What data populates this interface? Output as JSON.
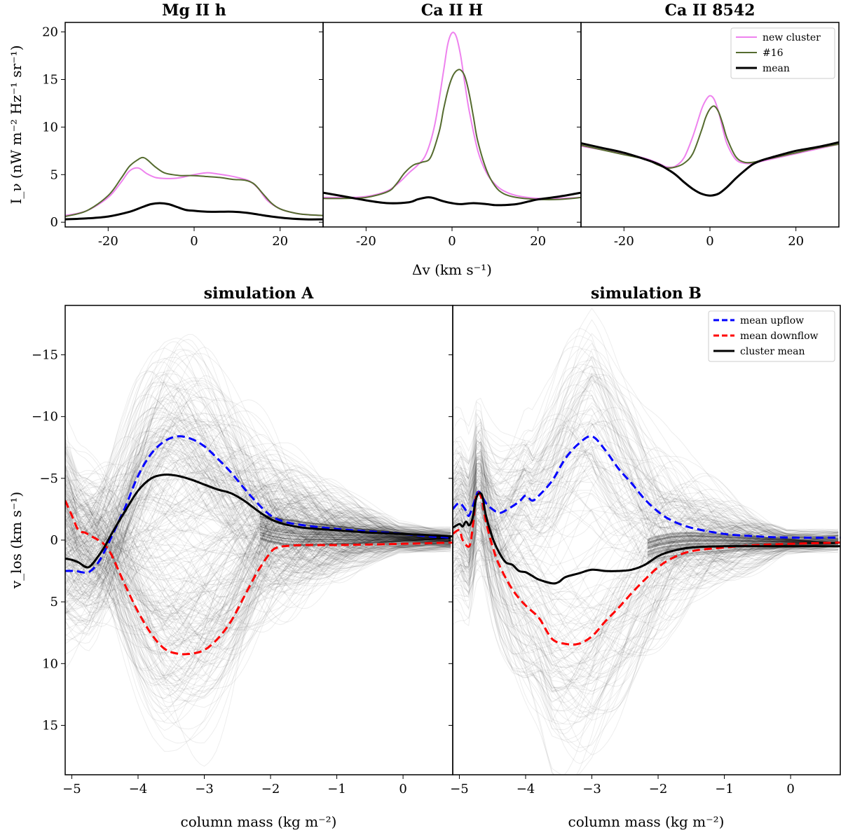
{
  "top_panels": [
    {
      "title": "Mg II h",
      "chart_data": {
        "type": "line",
        "title": "Mg II h",
        "xlim": [
          -30,
          30
        ],
        "ylim": [
          -0.5,
          21
        ],
        "xticks": [
          -20,
          0,
          20
        ],
        "yticks": [
          0,
          5,
          10,
          15,
          20
        ],
        "series": [
          {
            "name": "new cluster",
            "color": "#ee82ee",
            "x": [
              -30,
              -25,
              -20,
              -17,
              -15,
              -13,
              -11,
              -9,
              -7,
              -5,
              -3,
              0,
              3,
              5,
              8,
              11,
              13,
              15,
              17,
              20,
              23,
              26,
              30
            ],
            "y": [
              0.7,
              1.2,
              2.6,
              4.2,
              5.4,
              5.7,
              5.1,
              4.7,
              4.6,
              4.6,
              4.7,
              5.0,
              5.2,
              5.1,
              4.9,
              4.6,
              4.3,
              3.5,
              2.3,
              1.4,
              1.0,
              0.8,
              0.7
            ]
          },
          {
            "name": "#16",
            "color": "#556b2f",
            "x": [
              -30,
              -25,
              -20,
              -17,
              -15,
              -13,
              -12,
              -11,
              -9,
              -7,
              -5,
              -3,
              0,
              3,
              6,
              9,
              12,
              14,
              16,
              18,
              20,
              23,
              26,
              30
            ],
            "y": [
              0.6,
              1.2,
              2.8,
              4.6,
              5.9,
              6.6,
              6.8,
              6.6,
              5.8,
              5.2,
              5.0,
              4.9,
              4.9,
              4.8,
              4.7,
              4.5,
              4.4,
              4.0,
              3.0,
              2.0,
              1.4,
              1.0,
              0.8,
              0.7
            ]
          },
          {
            "name": "mean",
            "color": "#000000",
            "x": [
              -30,
              -25,
              -20,
              -15,
              -12,
              -10,
              -8,
              -6,
              -4,
              -2,
              0,
              3,
              6,
              9,
              12,
              15,
              18,
              22,
              26,
              30
            ],
            "y": [
              0.3,
              0.4,
              0.6,
              1.1,
              1.6,
              1.9,
              2.0,
              1.9,
              1.6,
              1.3,
              1.2,
              1.1,
              1.1,
              1.1,
              1.0,
              0.8,
              0.6,
              0.4,
              0.3,
              0.3
            ]
          }
        ]
      }
    },
    {
      "title": "Ca II H",
      "chart_data": {
        "type": "line",
        "title": "Ca II H",
        "xlim": [
          -30,
          30
        ],
        "ylim": [
          -0.5,
          21
        ],
        "xticks": [
          -20,
          0,
          20
        ],
        "yticks": [
          0,
          5,
          10,
          15,
          20
        ],
        "series": [
          {
            "name": "new cluster",
            "color": "#ee82ee",
            "x": [
              -30,
              -25,
              -20,
              -15,
              -12,
              -10,
              -8,
              -6,
              -4,
              -2,
              -1,
              0,
              1,
              2,
              3,
              4,
              6,
              8,
              10,
              12,
              15,
              20,
              25,
              30
            ],
            "y": [
              2.6,
              2.6,
              2.7,
              3.3,
              4.3,
              5.2,
              6.0,
              7.2,
              10.3,
              15.8,
              18.7,
              19.9,
              19.5,
              17.5,
              14.5,
              11.7,
              7.5,
              5.2,
              4.0,
              3.3,
              2.8,
              2.5,
              2.5,
              2.6
            ]
          },
          {
            "name": "#16",
            "color": "#556b2f",
            "x": [
              -30,
              -25,
              -20,
              -15,
              -13,
              -11,
              -9,
              -7,
              -5,
              -3,
              -2,
              -1,
              0,
              1,
              2,
              3,
              4,
              5,
              6,
              8,
              10,
              12,
              15,
              20,
              25,
              30
            ],
            "y": [
              2.5,
              2.5,
              2.6,
              3.2,
              4.0,
              5.2,
              6.0,
              6.3,
              6.8,
              9.5,
              11.8,
              13.8,
              15.2,
              15.9,
              16.0,
              15.3,
              13.5,
              11.0,
              8.5,
              5.5,
              3.8,
              3.0,
              2.6,
              2.4,
              2.4,
              2.6
            ]
          },
          {
            "name": "mean",
            "color": "#000000",
            "x": [
              -30,
              -25,
              -20,
              -15,
              -10,
              -8,
              -6,
              -5,
              -4,
              -2,
              0,
              2,
              5,
              8,
              10,
              12,
              15,
              18,
              20,
              25,
              30
            ],
            "y": [
              3.1,
              2.7,
              2.3,
              2.0,
              2.1,
              2.4,
              2.6,
              2.6,
              2.5,
              2.2,
              2.0,
              1.9,
              2.0,
              1.9,
              1.8,
              1.8,
              1.9,
              2.2,
              2.4,
              2.7,
              3.1
            ]
          }
        ]
      }
    },
    {
      "title": "Ca II 8542",
      "chart_data": {
        "type": "line",
        "title": "Ca II 8542",
        "xlim": [
          -30,
          30
        ],
        "ylim": [
          -0.5,
          21
        ],
        "xticks": [
          -20,
          0,
          20
        ],
        "yticks": [
          0,
          5,
          10,
          15,
          20
        ],
        "legend": [
          "new cluster",
          "#16",
          "mean"
        ],
        "series": [
          {
            "name": "new cluster",
            "color": "#ee82ee",
            "x": [
              -30,
              -25,
              -20,
              -15,
              -12,
              -10,
              -8,
              -6,
              -4,
              -2,
              -1,
              0,
              1,
              2,
              3,
              4,
              6,
              8,
              10,
              12,
              15,
              20,
              25,
              30
            ],
            "y": [
              8.0,
              7.6,
              7.2,
              6.7,
              6.2,
              5.8,
              5.9,
              6.8,
              9.0,
              11.8,
              12.8,
              13.3,
              12.9,
              11.6,
              9.8,
              8.2,
              6.6,
              6.2,
              6.2,
              6.4,
              6.7,
              7.2,
              7.7,
              8.2
            ]
          },
          {
            "name": "#16",
            "color": "#556b2f",
            "x": [
              -30,
              -25,
              -20,
              -15,
              -12,
              -10,
              -8,
              -6,
              -4,
              -2,
              -1,
              0,
              1,
              2,
              3,
              4,
              6,
              8,
              10,
              12,
              15,
              20,
              25,
              30
            ],
            "y": [
              8.1,
              7.6,
              7.1,
              6.6,
              6.0,
              5.7,
              5.8,
              6.2,
              7.2,
              9.6,
              11.0,
              11.9,
              12.2,
              11.6,
              10.3,
              8.8,
              6.9,
              6.3,
              6.3,
              6.5,
              6.8,
              7.3,
              7.8,
              8.2
            ]
          },
          {
            "name": "mean",
            "color": "#000000",
            "x": [
              -30,
              -25,
              -20,
              -15,
              -12,
              -10,
              -8,
              -6,
              -4,
              -2,
              0,
              2,
              4,
              6,
              8,
              10,
              12,
              15,
              20,
              25,
              30
            ],
            "y": [
              8.3,
              7.8,
              7.3,
              6.6,
              6.1,
              5.6,
              5.0,
              4.2,
              3.5,
              3.0,
              2.8,
              3.0,
              3.7,
              4.6,
              5.4,
              6.1,
              6.5,
              6.9,
              7.5,
              7.9,
              8.4
            ]
          }
        ]
      }
    }
  ],
  "top_ylabel": "I_ν (nW m⁻² Hz⁻¹ sr⁻¹)",
  "top_xlabel": "Δv (km s⁻¹)",
  "bottom_panels": [
    {
      "title": "simulation A",
      "chart_data": {
        "type": "line",
        "title": "simulation A",
        "xlim": [
          -5.1,
          0.75
        ],
        "ylim": [
          -19,
          19
        ],
        "y_inverted": true,
        "xticks": [
          -5,
          -4,
          -3,
          -2,
          -1,
          0
        ],
        "yticks": [
          -15,
          -10,
          -5,
          0,
          5,
          10,
          15
        ],
        "xlabel": "column mass (kg m⁻²)",
        "series": [
          {
            "name": "mean upflow",
            "color": "#0000ff",
            "dash": true,
            "x": [
              -5.1,
              -4.95,
              -4.75,
              -4.6,
              -4.45,
              -4.2,
              -4.0,
              -3.8,
              -3.6,
              -3.4,
              -3.2,
              -3.0,
              -2.8,
              -2.6,
              -2.4,
              -2.2,
              -2.0,
              -1.8,
              -1.5,
              -1.0,
              -0.5,
              0,
              0.4,
              0.75
            ],
            "y": [
              2.5,
              2.5,
              2.6,
              1.8,
              0.3,
              -2.6,
              -5.2,
              -7.0,
              -8.0,
              -8.4,
              -8.2,
              -7.6,
              -6.6,
              -5.5,
              -4.2,
              -3.0,
              -2.0,
              -1.5,
              -1.2,
              -0.9,
              -0.7,
              -0.5,
              -0.3,
              -0.2
            ]
          },
          {
            "name": "mean downflow",
            "color": "#ff0000",
            "dash": true,
            "x": [
              -5.1,
              -5.0,
              -4.9,
              -4.8,
              -4.7,
              -4.6,
              -4.5,
              -4.4,
              -4.2,
              -4.0,
              -3.8,
              -3.6,
              -3.4,
              -3.2,
              -3.0,
              -2.8,
              -2.6,
              -2.4,
              -2.2,
              -2.0,
              -1.9,
              -1.8,
              -1.5,
              -1.0,
              0,
              0.75
            ],
            "y": [
              -3.2,
              -2.0,
              -0.8,
              -0.6,
              -0.3,
              0.0,
              0.4,
              1.2,
              3.6,
              5.8,
              7.6,
              8.8,
              9.2,
              9.2,
              8.9,
              8.0,
              6.6,
              4.6,
              2.6,
              1.0,
              0.6,
              0.5,
              0.4,
              0.4,
              0.3,
              0.2
            ]
          },
          {
            "name": "cluster mean",
            "color": "#000000",
            "dash": false,
            "x": [
              -5.1,
              -5.0,
              -4.9,
              -4.75,
              -4.6,
              -4.5,
              -4.4,
              -4.2,
              -4.0,
              -3.8,
              -3.6,
              -3.4,
              -3.2,
              -3.0,
              -2.8,
              -2.6,
              -2.4,
              -2.2,
              -2.0,
              -1.8,
              -1.5,
              -1.0,
              -0.5,
              0,
              0.4,
              0.75
            ],
            "y": [
              1.5,
              1.6,
              1.8,
              2.2,
              1.3,
              0.5,
              -0.5,
              -2.3,
              -4.0,
              -5.0,
              -5.3,
              -5.2,
              -4.9,
              -4.5,
              -4.1,
              -3.8,
              -3.2,
              -2.4,
              -1.7,
              -1.3,
              -1.0,
              -0.8,
              -0.6,
              -0.5,
              -0.4,
              -0.3
            ]
          }
        ]
      }
    },
    {
      "title": "simulation B",
      "chart_data": {
        "type": "line",
        "title": "simulation B",
        "xlim": [
          -5.1,
          0.75
        ],
        "ylim": [
          -19,
          19
        ],
        "y_inverted": true,
        "xticks": [
          -5,
          -4,
          -3,
          -2,
          -1,
          0
        ],
        "xlabel": "column mass (kg m⁻²)",
        "legend": [
          "mean upflow",
          "mean downflow",
          "cluster mean"
        ],
        "series": [
          {
            "name": "mean upflow",
            "color": "#0000ff",
            "dash": true,
            "x": [
              -5.1,
              -5.0,
              -4.9,
              -4.85,
              -4.75,
              -4.7,
              -4.6,
              -4.5,
              -4.4,
              -4.3,
              -4.1,
              -4.0,
              -3.9,
              -3.8,
              -3.6,
              -3.4,
              -3.2,
              -3.0,
              -2.8,
              -2.6,
              -2.4,
              -2.2,
              -2.0,
              -1.8,
              -1.5,
              -1.0,
              -0.5,
              0,
              0.75
            ],
            "y": [
              -2.5,
              -3.0,
              -2.4,
              -2.0,
              -3.5,
              -3.9,
              -3.0,
              -2.5,
              -2.2,
              -2.4,
              -3.1,
              -3.6,
              -3.2,
              -3.6,
              -4.8,
              -6.6,
              -7.8,
              -8.4,
              -7.3,
              -5.8,
              -4.6,
              -3.3,
              -2.3,
              -1.6,
              -1.0,
              -0.5,
              -0.3,
              -0.2,
              -0.2
            ]
          },
          {
            "name": "mean downflow",
            "color": "#ff0000",
            "dash": true,
            "x": [
              -5.1,
              -5.0,
              -4.95,
              -4.85,
              -4.8,
              -4.75,
              -4.7,
              -4.65,
              -4.6,
              -4.5,
              -4.4,
              -4.2,
              -4.0,
              -3.8,
              -3.6,
              -3.4,
              -3.2,
              -3.0,
              -2.8,
              -2.6,
              -2.4,
              -2.2,
              -2.0,
              -1.8,
              -1.5,
              -1.0,
              -0.5,
              0,
              0.75
            ],
            "y": [
              -0.5,
              -0.8,
              0.0,
              0.5,
              -1.0,
              -3.5,
              -3.8,
              -3.0,
              -1.5,
              0.5,
              2.0,
              4.0,
              5.3,
              6.3,
              8.0,
              8.4,
              8.4,
              7.8,
              6.6,
              5.5,
              4.3,
              3.2,
              2.2,
              1.5,
              0.9,
              0.6,
              0.4,
              0.3,
              0.2
            ]
          },
          {
            "name": "cluster mean",
            "color": "#000000",
            "dash": false,
            "x": [
              -5.1,
              -5.0,
              -4.95,
              -4.9,
              -4.85,
              -4.8,
              -4.75,
              -4.7,
              -4.65,
              -4.6,
              -4.5,
              -4.4,
              -4.3,
              -4.2,
              -4.1,
              -4.0,
              -3.9,
              -3.8,
              -3.6,
              -3.5,
              -3.4,
              -3.2,
              -3.0,
              -2.8,
              -2.6,
              -2.4,
              -2.2,
              -2.0,
              -1.8,
              -1.5,
              -1.0,
              -0.5,
              0,
              0.75
            ],
            "y": [
              -1.0,
              -1.3,
              -1.1,
              -1.5,
              -1.2,
              -1.8,
              -3.3,
              -3.8,
              -3.5,
              -2.0,
              -0.2,
              1.0,
              1.8,
              2.0,
              2.5,
              2.6,
              2.9,
              3.2,
              3.5,
              3.4,
              3.0,
              2.7,
              2.4,
              2.5,
              2.5,
              2.4,
              2.0,
              1.3,
              0.9,
              0.6,
              0.5,
              0.5,
              0.5,
              0.5
            ]
          }
        ]
      }
    }
  ],
  "bottom_ylabel": "v_los (km s⁻¹)",
  "legend_top": [
    "new cluster",
    "#16",
    "mean"
  ],
  "legend_bottom": [
    "mean upflow",
    "mean downflow",
    "cluster mean"
  ]
}
